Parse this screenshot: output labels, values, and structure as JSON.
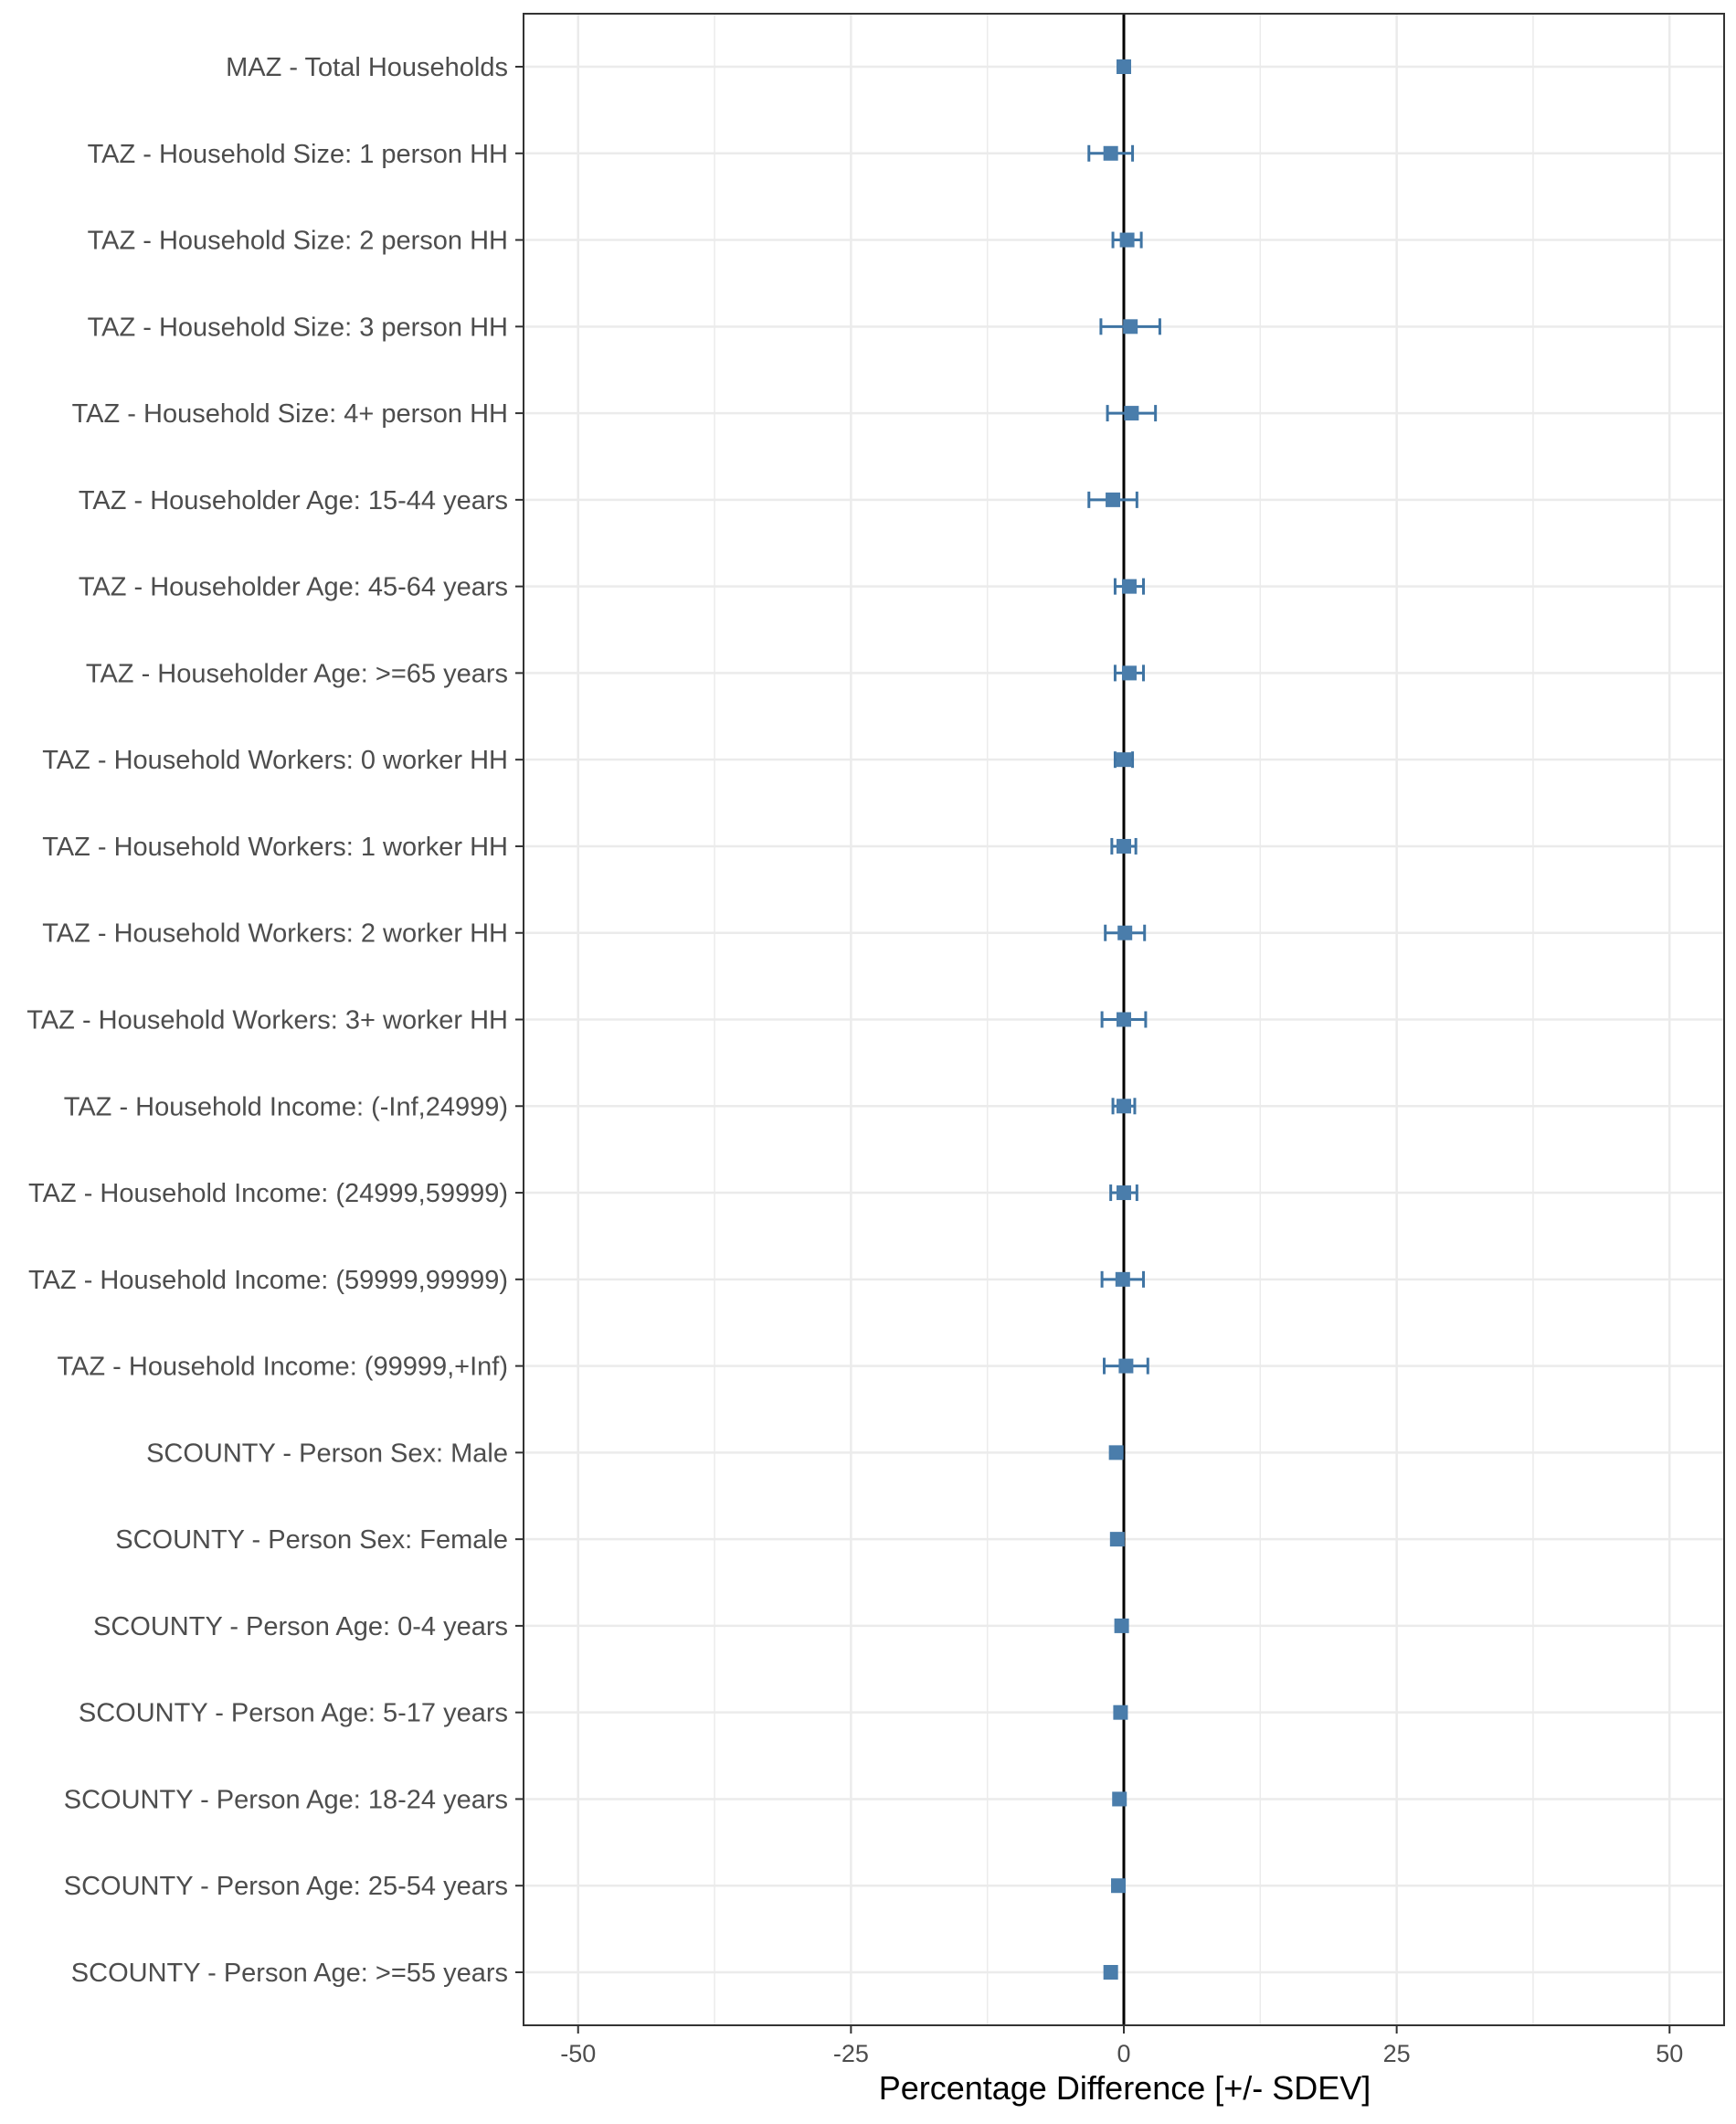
{
  "chart_data": {
    "type": "scatter",
    "title": "",
    "xlabel": "Percentage Difference [+/- SDEV]",
    "ylabel": "",
    "xlim": [
      -55,
      55
    ],
    "x_ticks": [
      -50,
      -25,
      0,
      25,
      50
    ],
    "x_tick_labels": [
      "-50",
      "-25",
      "0",
      "25",
      "50"
    ],
    "grid": true,
    "reference_line_x": 0,
    "colors": {
      "point": "#4a7dab",
      "errorbar": "#3f74a3",
      "grid": "#ebebeb",
      "axis": "#333333",
      "zero_line": "#000000"
    },
    "categories": [
      "MAZ - Total Households",
      "TAZ - Household Size: 1 person HH",
      "TAZ - Household Size: 2 person HH",
      "TAZ - Household Size: 3 person HH",
      "TAZ - Household Size: 4+ person HH",
      "TAZ - Householder Age: 15-44 years",
      "TAZ - Householder Age: 45-64 years",
      "TAZ - Householder Age: >=65 years",
      "TAZ - Household Workers: 0 worker HH",
      "TAZ - Household Workers: 1 worker HH",
      "TAZ - Household Workers: 2 worker HH",
      "TAZ - Household Workers: 3+ worker HH",
      "TAZ - Household Income: (-Inf,24999)",
      "TAZ - Household Income: (24999,59999)",
      "TAZ - Household Income: (59999,99999)",
      "TAZ - Household Income: (99999,+Inf)",
      "SCOUNTY - Person Sex: Male",
      "SCOUNTY - Person Sex: Female",
      "SCOUNTY - Person Age: 0-4 years",
      "SCOUNTY - Person Age: 5-17 years",
      "SCOUNTY - Person Age: 18-24 years",
      "SCOUNTY - Person Age: 25-54 years",
      "SCOUNTY - Person Age: >=55 years"
    ],
    "series": [
      {
        "values": [
          0.0,
          -1.2,
          0.3,
          0.6,
          0.7,
          -1.0,
          0.5,
          0.5,
          0.0,
          0.0,
          0.1,
          0.0,
          0.0,
          0.0,
          -0.1,
          0.2,
          -0.7,
          -0.6,
          -0.2,
          -0.3,
          -0.4,
          -0.5,
          -1.2
        ],
        "sdev": [
          0.0,
          2.0,
          1.3,
          2.7,
          2.2,
          2.2,
          1.3,
          1.3,
          0.8,
          1.1,
          1.8,
          2.0,
          1.0,
          1.2,
          1.9,
          2.0,
          0.0,
          0.0,
          0.0,
          0.0,
          0.0,
          0.0,
          0.0
        ]
      }
    ]
  }
}
